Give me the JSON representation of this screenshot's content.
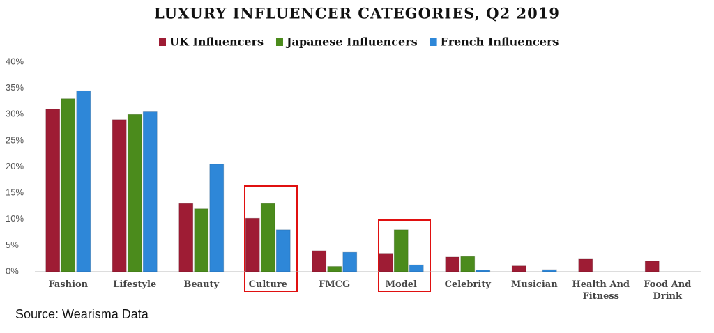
{
  "chart_data": {
    "type": "bar",
    "title": "LUXURY INFLUENCER CATEGORIES, Q2 2019",
    "source": "Source: Wearisma Data",
    "categories": [
      "Fashion",
      "Lifestyle",
      "Beauty",
      "Culture",
      "FMCG",
      "Model",
      "Celebrity",
      "Musician",
      "Health And Fitness",
      "Food And Drink"
    ],
    "series": [
      {
        "name": "UK Influencers",
        "color": "#9e1c34",
        "values": [
          31,
          29,
          13,
          10.2,
          4,
          3.5,
          2.8,
          1.1,
          2.4,
          2
        ]
      },
      {
        "name": "Japanese Influencers",
        "color": "#4b8b1c",
        "values": [
          33,
          30,
          12,
          13,
          1,
          8,
          2.9,
          0,
          0,
          0
        ]
      },
      {
        "name": "French Influencers",
        "color": "#2e87d8",
        "values": [
          34.5,
          30.5,
          20.5,
          8,
          3.7,
          1.3,
          0.3,
          0.4,
          0,
          0
        ]
      }
    ],
    "ylim": [
      0,
      40
    ],
    "yticks": [
      {
        "value": 0,
        "label": "0%"
      },
      {
        "value": 5,
        "label": "5%"
      },
      {
        "value": 10,
        "label": "10%"
      },
      {
        "value": 15,
        "label": "15%"
      },
      {
        "value": 20,
        "label": "20%"
      },
      {
        "value": 25,
        "label": "25%"
      },
      {
        "value": 30,
        "label": "30%"
      },
      {
        "value": 35,
        "label": "35%"
      },
      {
        "value": 40,
        "label": "40%"
      }
    ],
    "grid": false
  }
}
